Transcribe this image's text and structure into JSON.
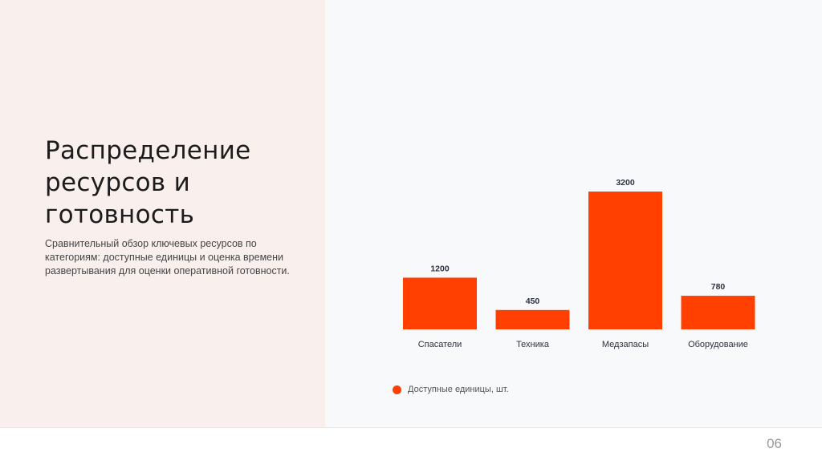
{
  "slide": {
    "title": "Распределение ресурсов и готовность",
    "subtitle": "Сравнительный обзор ключевых ресурсов по категориям: доступные единицы и оценка времени развертывания для оценки оперативной готовности.",
    "page_number": "06"
  },
  "chart_data": {
    "type": "bar",
    "categories": [
      "Спасатели",
      "Техника",
      "Медзапасы",
      "Оборудование"
    ],
    "series": [
      {
        "name": "Доступные единицы, шт.",
        "values": [
          1200,
          450,
          3200,
          780
        ],
        "color": "#ff4000"
      }
    ],
    "ylim": [
      0,
      3200
    ],
    "grid": false,
    "legend_position": "bottom-left",
    "data_labels": true
  },
  "colors": {
    "accent": "#ff4000",
    "left_panel": "#f9f0ee",
    "background": "#f8f9fb"
  }
}
